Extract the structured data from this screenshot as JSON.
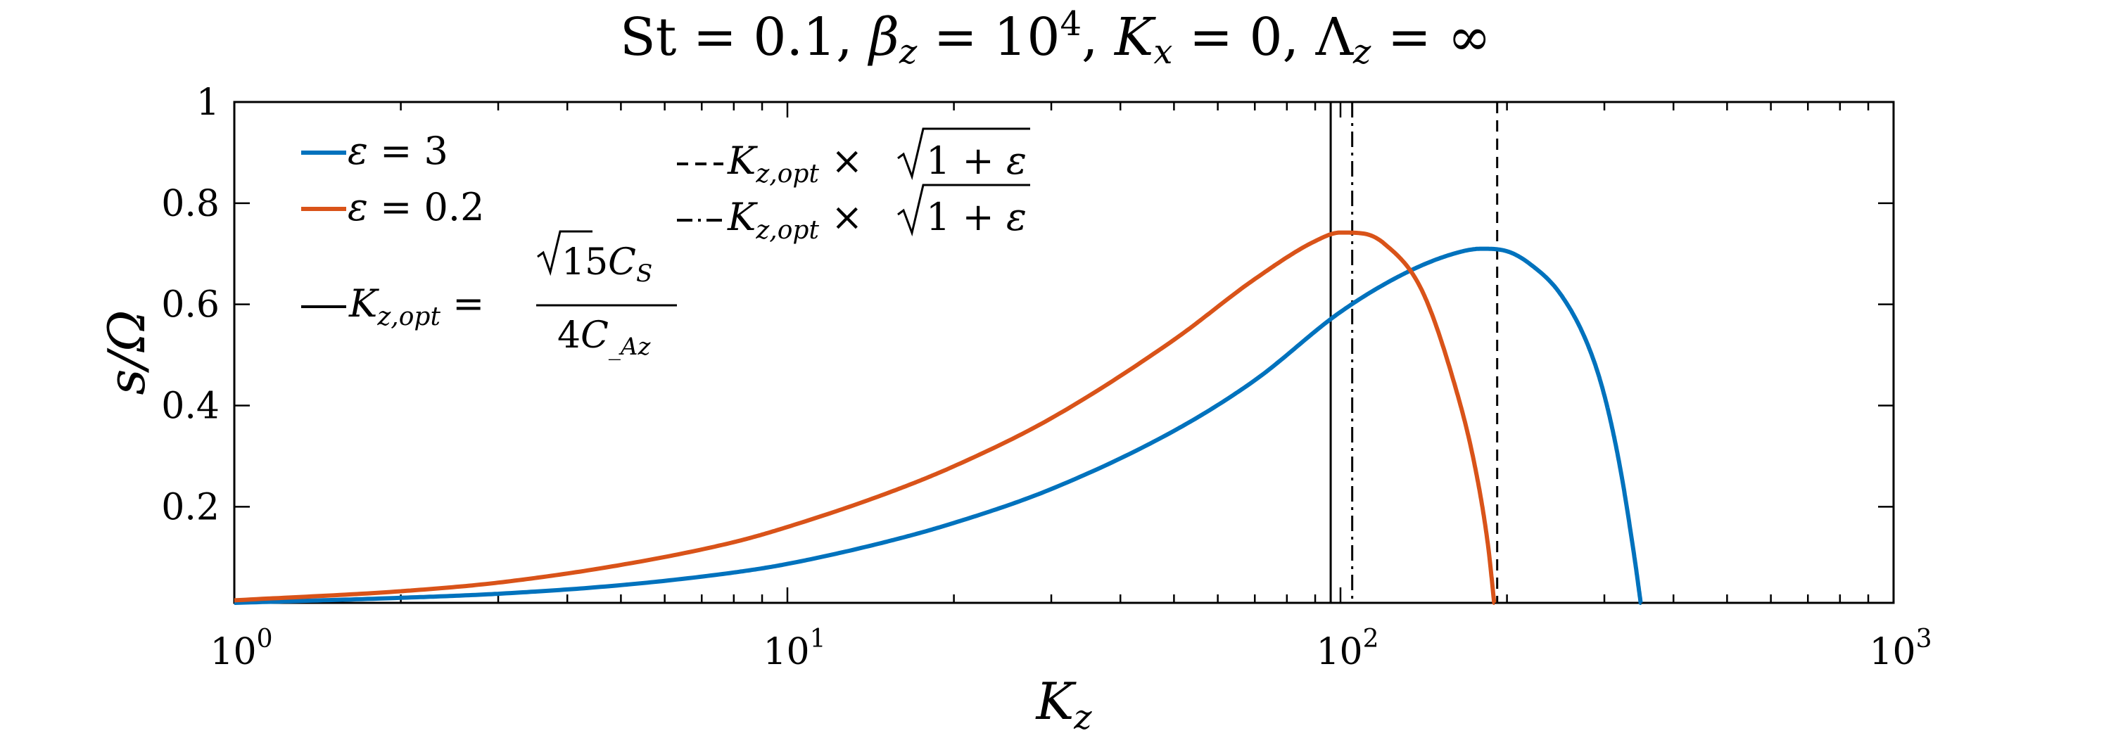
{
  "chart_data": {
    "type": "line",
    "title": "St = 0.1, β_z = 10^4, K_x = 0, Λ_z = ∞",
    "xlabel": "K_z",
    "ylabel": "s/Ω",
    "xscale": "log",
    "xlim": [
      1,
      1000
    ],
    "ylim": [
      0.01,
      1
    ],
    "x_ticks": [
      1,
      10,
      100,
      1000
    ],
    "x_tick_labels": [
      "10^0",
      "10^1",
      "10^2",
      "10^3"
    ],
    "y_ticks": [
      0.2,
      0.4,
      0.6,
      0.8,
      1
    ],
    "y_tick_labels": [
      "0.2",
      "0.4",
      "0.6",
      "0.8",
      "1"
    ],
    "grid": false,
    "legend_position": "top-left",
    "series": [
      {
        "name": "ε = 3",
        "color": "#0072BD",
        "x": [
          1,
          2,
          3,
          5,
          8,
          10,
          15,
          20,
          30,
          50,
          70,
          100,
          130,
          160,
          180,
          200,
          220,
          250,
          280,
          300,
          320,
          340,
          350
        ],
        "y": [
          0.01,
          0.02,
          0.028,
          0.045,
          0.07,
          0.087,
          0.13,
          0.168,
          0.235,
          0.35,
          0.45,
          0.585,
          0.66,
          0.7,
          0.71,
          0.705,
          0.68,
          0.62,
          0.52,
          0.42,
          0.28,
          0.1,
          0.0
        ]
      },
      {
        "name": "ε = 0.2",
        "color": "#D95319",
        "x": [
          1,
          2,
          3,
          5,
          8,
          10,
          15,
          20,
          30,
          50,
          70,
          90,
          100,
          110,
          120,
          140,
          160,
          175,
          185,
          190
        ],
        "y": [
          0.015,
          0.033,
          0.05,
          0.085,
          0.13,
          0.16,
          0.225,
          0.28,
          0.375,
          0.53,
          0.65,
          0.725,
          0.742,
          0.74,
          0.72,
          0.63,
          0.45,
          0.28,
          0.12,
          0.0
        ]
      }
    ],
    "reference_lines": [
      {
        "label": "K_z,opt = √15 C_S / 4C_Az",
        "x": 96,
        "style": "solid"
      },
      {
        "label": "K_z,opt × √(1+ε)",
        "x": 192,
        "style": "dashed"
      },
      {
        "label": "K_z,opt × √(1+ε)",
        "x": 105,
        "style": "dashdot"
      }
    ]
  }
}
